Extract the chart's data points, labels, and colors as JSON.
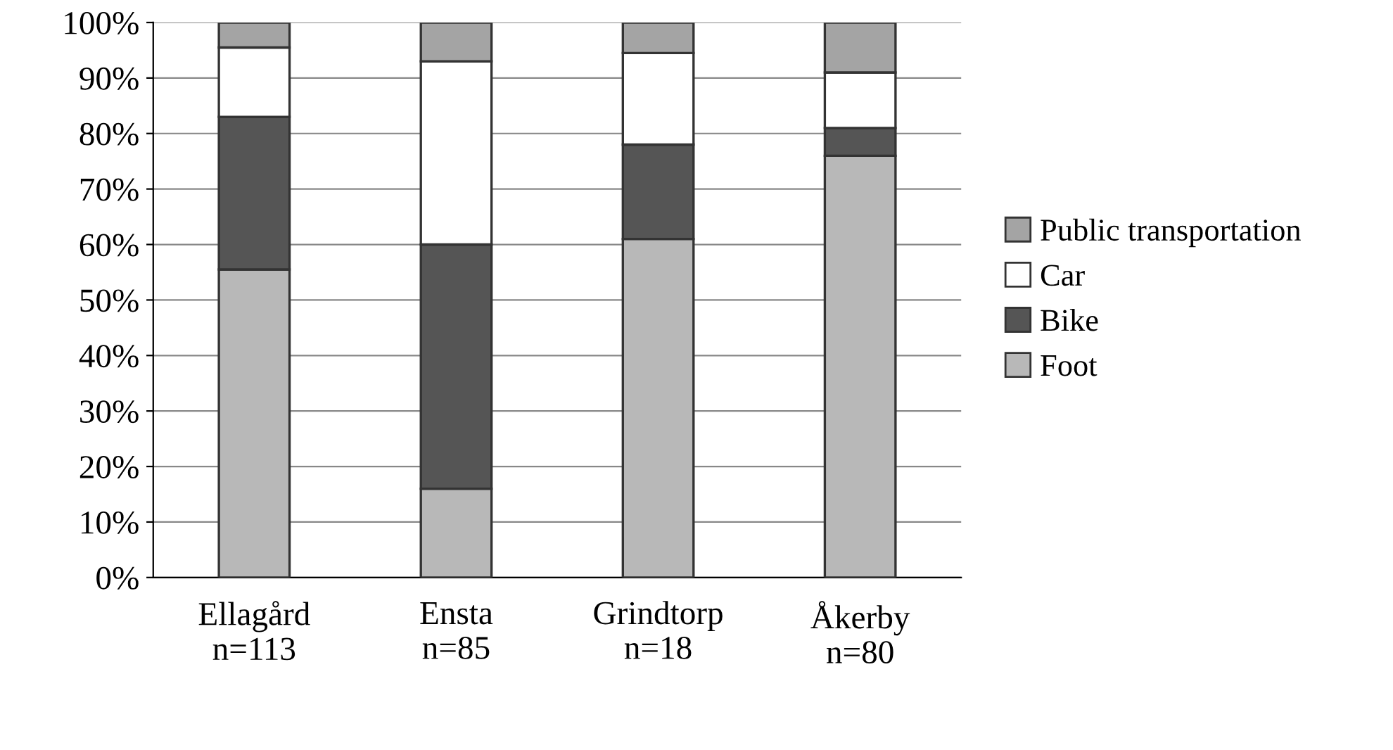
{
  "chart_data": {
    "type": "bar",
    "stacked": true,
    "categories": [
      "Ellagård\nn=113",
      "Ensta\nn=85",
      "Grindtorp\nn=18",
      "Åkerby\nn=80"
    ],
    "series": [
      {
        "name": "Foot",
        "color": "#b8b8b8",
        "values": [
          55.5,
          16,
          61,
          76
        ]
      },
      {
        "name": "Bike",
        "color": "#555555",
        "values": [
          27.5,
          44,
          17,
          5
        ]
      },
      {
        "name": "Car",
        "color": "#ffffff",
        "values": [
          12.5,
          33,
          16.5,
          10
        ]
      },
      {
        "name": "Public transportation",
        "color": "#a4a4a4",
        "values": [
          4.5,
          7,
          5.5,
          9
        ]
      }
    ],
    "ylim": [
      0,
      100
    ],
    "yticks": [
      {
        "value": 0,
        "label": "0%"
      },
      {
        "value": 10,
        "label": "10%"
      },
      {
        "value": 20,
        "label": "20%"
      },
      {
        "value": 30,
        "label": "30%"
      },
      {
        "value": 40,
        "label": "40%"
      },
      {
        "value": 50,
        "label": "50%"
      },
      {
        "value": 60,
        "label": "60%"
      },
      {
        "value": 70,
        "label": "70%"
      },
      {
        "value": 80,
        "label": "80%"
      },
      {
        "value": 90,
        "label": "90%"
      },
      {
        "value": 100,
        "label": "100%"
      }
    ],
    "grid": "y",
    "legend": "right"
  }
}
